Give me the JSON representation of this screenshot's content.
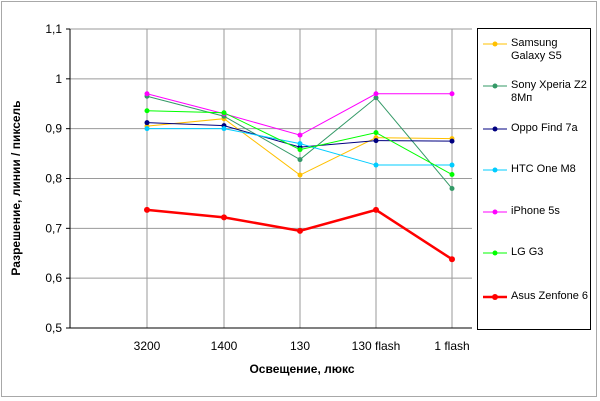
{
  "chart_data": {
    "type": "line",
    "xlabel": "Освещение, люкс",
    "ylabel": "Разрешение, линии / пиксель",
    "categories": [
      "3200",
      "1400",
      "130",
      "130 flash",
      "1 flash"
    ],
    "ylim": [
      0.5,
      1.1
    ],
    "yticks": [
      0.5,
      0.6,
      0.7,
      0.8,
      0.9,
      1.0,
      1.1
    ],
    "ytick_labels": [
      "0,5",
      "0,6",
      "0,7",
      "0,8",
      "0,9",
      "1",
      "1,1"
    ],
    "grid": true,
    "legend_position": "right",
    "series": [
      {
        "name": "Samsung Galaxy S5",
        "color": "#ffc000",
        "values": [
          0.905,
          0.92,
          0.807,
          0.882,
          0.88
        ]
      },
      {
        "name": "Sony Xperia Z2 8Мп",
        "color": "#339966",
        "values": [
          0.965,
          0.925,
          0.838,
          0.962,
          0.78
        ]
      },
      {
        "name": "Oppo Find 7a",
        "color": "#000080",
        "values": [
          0.912,
          0.906,
          0.863,
          0.876,
          0.875
        ]
      },
      {
        "name": "HTC One M8",
        "color": "#00ccff",
        "values": [
          0.9,
          0.9,
          0.87,
          0.827,
          0.827
        ]
      },
      {
        "name": "iPhone 5s",
        "color": "#ff00ff",
        "values": [
          0.97,
          0.93,
          0.887,
          0.97,
          0.97
        ]
      },
      {
        "name": "LG G3",
        "color": "#00ff00",
        "values": [
          0.936,
          0.932,
          0.858,
          0.892,
          0.808
        ]
      },
      {
        "name": "Asus Zenfone 6",
        "color": "#ff0000",
        "values": [
          0.737,
          0.722,
          0.695,
          0.737,
          0.638
        ]
      }
    ]
  }
}
